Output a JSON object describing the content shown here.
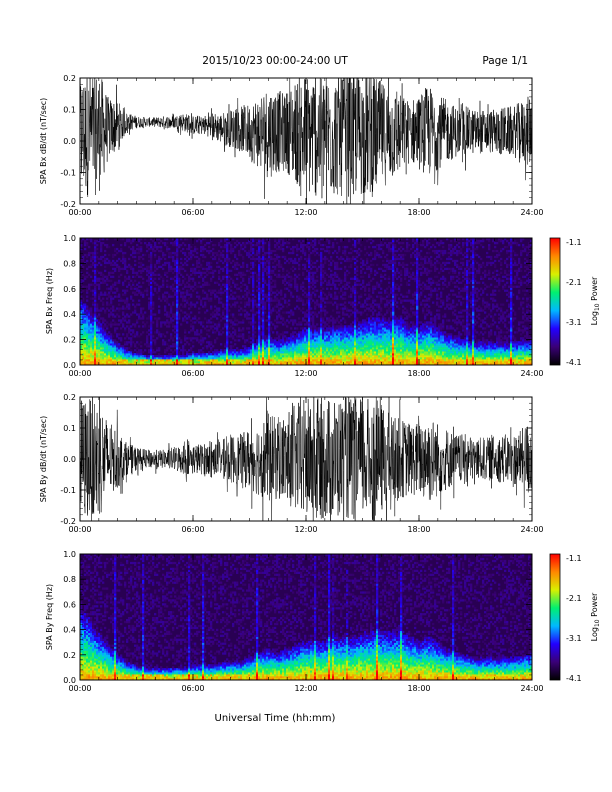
{
  "header": {
    "title": "2015/10/23  00:00-24:00 UT",
    "page": "Page 1/1"
  },
  "x_axis_title": "Universal Time (hh:mm)",
  "colorbar": {
    "label": "Log10 Power",
    "label_base": "Log",
    "label_sub": "10",
    "label_rest": " Power",
    "ticks": [
      "-1.1",
      "-2.1",
      "-3.1",
      "-4.1"
    ],
    "colors": [
      "#000000",
      "#3a0077",
      "#2200ff",
      "#00b8ff",
      "#00f070",
      "#d8f000",
      "#ff8800",
      "#ff0000"
    ]
  },
  "chart_data": [
    {
      "type": "line",
      "ylabel": "SPA Bx dB/dt (nT/sec)",
      "xlim": [
        0,
        24
      ],
      "ylim": [
        -0.2,
        0.2
      ],
      "x_ticks": [
        "00:00",
        "06:00",
        "12:00",
        "18:00",
        "24:00"
      ],
      "y_ticks": [
        "-0.2",
        "-0.1",
        "0.0",
        "0.1",
        "0.2"
      ],
      "series": [
        {
          "x": [
            0,
            0.5,
            1,
            1.5,
            2,
            2.5,
            3,
            3.5,
            4,
            4.5,
            5,
            5.5,
            6,
            6.5,
            7,
            7.5,
            8,
            8.5,
            9,
            9.5,
            10,
            10.5,
            11,
            11.5,
            12,
            12.5,
            13,
            13.5,
            14,
            14.5,
            15,
            15.5,
            16,
            16.5,
            17,
            17.5,
            18,
            18.5,
            19,
            19.5,
            20,
            20.5,
            21,
            21.5,
            22,
            22.5,
            23,
            23.5,
            24
          ],
          "y_center": [
            0.02,
            0.02,
            0.03,
            0.04,
            0.05,
            0.06,
            0.06,
            0.06,
            0.06,
            0.06,
            0.06,
            0.06,
            0.05,
            0.05,
            0.05,
            0.04,
            0.04,
            0.04,
            0.03,
            0.03,
            0.03,
            0.03,
            0.03,
            0.03,
            0.02,
            0.02,
            0.02,
            0.02,
            0.02,
            0.02,
            0.02,
            0.02,
            0.02,
            0.02,
            0.02,
            0.03,
            0.03,
            0.03,
            0.03,
            0.03,
            0.03,
            0.03,
            0.03,
            0.03,
            0.03,
            0.03,
            0.03,
            0.03,
            0.03
          ],
          "y_amplitude": [
            0.2,
            0.2,
            0.2,
            0.1,
            0.08,
            0.03,
            0.02,
            0.015,
            0.015,
            0.02,
            0.02,
            0.03,
            0.03,
            0.03,
            0.04,
            0.05,
            0.06,
            0.07,
            0.09,
            0.12,
            0.15,
            0.13,
            0.13,
            0.17,
            0.2,
            0.2,
            0.2,
            0.2,
            0.2,
            0.2,
            0.2,
            0.2,
            0.17,
            0.15,
            0.13,
            0.1,
            0.12,
            0.15,
            0.12,
            0.1,
            0.08,
            0.08,
            0.07,
            0.07,
            0.07,
            0.08,
            0.08,
            0.1,
            0.12
          ]
        }
      ]
    },
    {
      "type": "heatmap",
      "ylabel": "SPA Bx Freq (Hz)",
      "xlim": [
        0,
        24
      ],
      "ylim": [
        0,
        1.0
      ],
      "x_ticks": [
        "00:00",
        "06:00",
        "12:00",
        "18:00",
        "24:00"
      ],
      "y_ticks": [
        "0.0",
        "0.2",
        "0.4",
        "0.6",
        "0.8",
        "1.0"
      ],
      "zlim": [
        -4.1,
        -1.1
      ],
      "background_log_power": -3.8,
      "low_freq_band_top_hz": [
        0.55,
        0.45,
        0.35,
        0.25,
        0.18,
        0.12,
        0.1,
        0.08,
        0.08,
        0.08,
        0.08,
        0.08,
        0.1,
        0.1,
        0.1,
        0.12,
        0.12,
        0.12,
        0.15,
        0.2,
        0.22,
        0.2,
        0.22,
        0.25,
        0.3,
        0.3,
        0.3,
        0.32,
        0.32,
        0.32,
        0.35,
        0.38,
        0.38,
        0.35,
        0.38,
        0.32,
        0.3,
        0.35,
        0.3,
        0.25,
        0.22,
        0.2,
        0.18,
        0.18,
        0.18,
        0.18,
        0.18,
        0.2,
        0.2
      ]
    },
    {
      "type": "line",
      "ylabel": "SPA By dB/dt (nT/sec)",
      "xlim": [
        0,
        24
      ],
      "ylim": [
        -0.2,
        0.2
      ],
      "x_ticks": [
        "00:00",
        "06:00",
        "12:00",
        "18:00",
        "24:00"
      ],
      "y_ticks": [
        "-0.2",
        "-0.1",
        "0.0",
        "0.1",
        "0.2"
      ],
      "series": [
        {
          "x": [
            0,
            0.5,
            1,
            1.5,
            2,
            2.5,
            3,
            3.5,
            4,
            4.5,
            5,
            5.5,
            6,
            6.5,
            7,
            7.5,
            8,
            8.5,
            9,
            9.5,
            10,
            10.5,
            11,
            11.5,
            12,
            12.5,
            13,
            13.5,
            14,
            14.5,
            15,
            15.5,
            16,
            16.5,
            17,
            17.5,
            18,
            18.5,
            19,
            19.5,
            20,
            20.5,
            21,
            21.5,
            22,
            22.5,
            23,
            23.5,
            24
          ],
          "y_center": [
            0.0,
            0.0,
            0.0,
            0.0,
            0.0,
            0.0,
            0.0,
            0.0,
            0.0,
            0.0,
            0.0,
            0.0,
            0.0,
            0.0,
            0.0,
            0.0,
            0.0,
            0.0,
            0.0,
            0.0,
            0.0,
            0.0,
            0.0,
            0.0,
            0.0,
            0.0,
            0.0,
            0.0,
            0.0,
            0.0,
            0.0,
            0.0,
            0.0,
            0.0,
            0.0,
            0.0,
            0.0,
            0.0,
            0.0,
            0.0,
            0.0,
            0.0,
            0.0,
            0.0,
            0.0,
            0.0,
            0.0,
            0.0,
            0.0
          ],
          "y_amplitude": [
            0.2,
            0.2,
            0.2,
            0.12,
            0.1,
            0.05,
            0.04,
            0.03,
            0.03,
            0.03,
            0.04,
            0.05,
            0.05,
            0.05,
            0.05,
            0.06,
            0.08,
            0.08,
            0.1,
            0.12,
            0.15,
            0.13,
            0.15,
            0.18,
            0.2,
            0.2,
            0.2,
            0.2,
            0.2,
            0.2,
            0.2,
            0.2,
            0.18,
            0.15,
            0.13,
            0.12,
            0.12,
            0.15,
            0.12,
            0.1,
            0.08,
            0.08,
            0.07,
            0.07,
            0.07,
            0.08,
            0.08,
            0.1,
            0.14
          ]
        }
      ]
    },
    {
      "type": "heatmap",
      "ylabel": "SPA By Freq (Hz)",
      "xlim": [
        0,
        24
      ],
      "ylim": [
        0,
        1.0
      ],
      "x_ticks": [
        "00:00",
        "06:00",
        "12:00",
        "18:00",
        "24:00"
      ],
      "y_ticks": [
        "0.0",
        "0.2",
        "0.4",
        "0.6",
        "0.8",
        "1.0"
      ],
      "zlim": [
        -4.1,
        -1.1
      ],
      "background_log_power": -3.8,
      "low_freq_band_top_hz": [
        0.6,
        0.5,
        0.38,
        0.28,
        0.2,
        0.15,
        0.12,
        0.1,
        0.1,
        0.1,
        0.1,
        0.1,
        0.12,
        0.12,
        0.12,
        0.14,
        0.15,
        0.15,
        0.18,
        0.22,
        0.25,
        0.22,
        0.25,
        0.28,
        0.32,
        0.32,
        0.32,
        0.35,
        0.35,
        0.35,
        0.38,
        0.4,
        0.4,
        0.38,
        0.4,
        0.35,
        0.32,
        0.35,
        0.3,
        0.25,
        0.22,
        0.2,
        0.18,
        0.18,
        0.18,
        0.18,
        0.18,
        0.2,
        0.22
      ]
    }
  ]
}
